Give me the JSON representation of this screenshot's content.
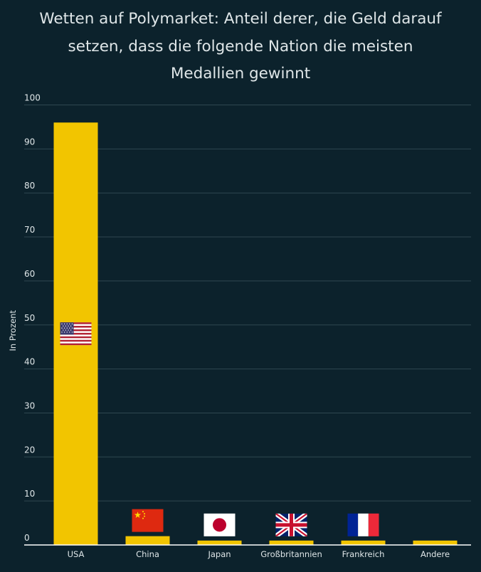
{
  "title_lines": [
    "Wetten auf Polymarket: Anteil derer, die Geld darauf",
    "setzen, dass die folgende Nation die meisten",
    "Medallien gewinnt"
  ],
  "colors": {
    "background": "#0c222c",
    "bar": "#f2c500",
    "grid": "#2f4750",
    "text": "#dfe6e8"
  },
  "chart_data": {
    "type": "bar",
    "title": "Wetten auf Polymarket: Anteil derer, die Geld darauf setzen, dass die folgende Nation die meisten Medallien gewinnt",
    "xlabel": "",
    "ylabel": "In Prozent",
    "ylim": [
      0,
      100
    ],
    "yticks": [
      0,
      10,
      20,
      30,
      40,
      50,
      60,
      70,
      80,
      90,
      100
    ],
    "grid": true,
    "categories": [
      "USA",
      "China",
      "Japan",
      "Großbritannien",
      "Frankreich",
      "Andere"
    ],
    "values": [
      96,
      2,
      1,
      1,
      1,
      1
    ],
    "flags": [
      "us-flag",
      "china-flag",
      "japan-flag",
      "uk-flag",
      "france-flag",
      null
    ]
  }
}
